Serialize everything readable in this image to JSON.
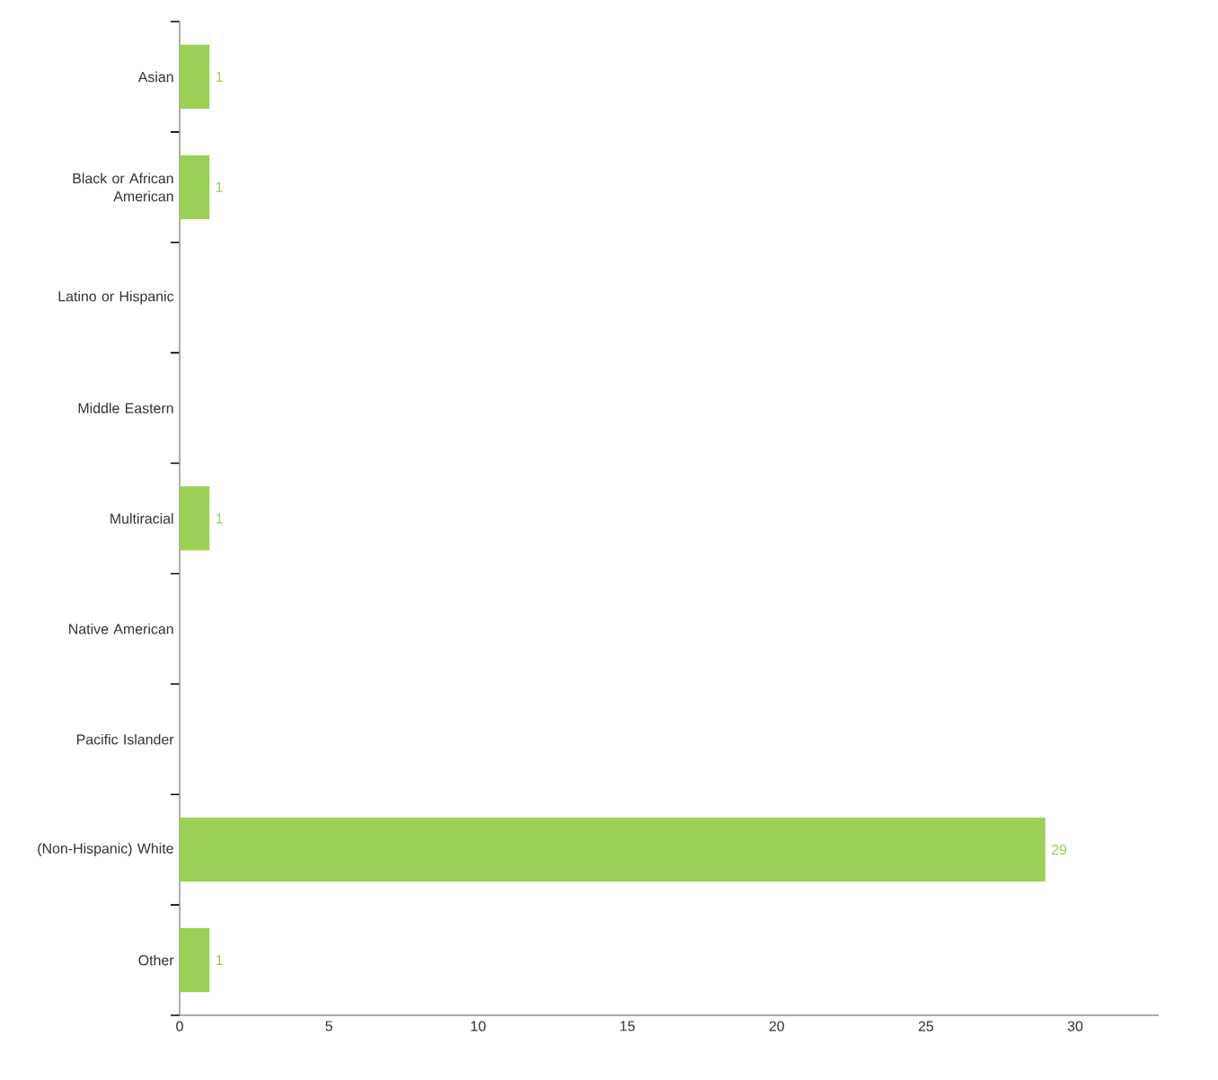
{
  "chart_data": {
    "type": "bar",
    "orientation": "horizontal",
    "categories": [
      "Asian",
      "Black or African American",
      "Latino or Hispanic",
      "Middle Eastern",
      "Multiracial",
      "Native American",
      "Pacific Islander",
      "(Non-Hispanic) White",
      "Other"
    ],
    "values": [
      1,
      1,
      0,
      0,
      1,
      0,
      0,
      29,
      1
    ],
    "value_labels": [
      "1",
      "1",
      null,
      null,
      "1",
      null,
      null,
      "29",
      "1"
    ],
    "color": "#9ccf55",
    "xlim": [
      0,
      32.8
    ],
    "xticks": [
      0,
      5,
      10,
      15,
      20,
      25,
      30
    ],
    "grid": false
  }
}
